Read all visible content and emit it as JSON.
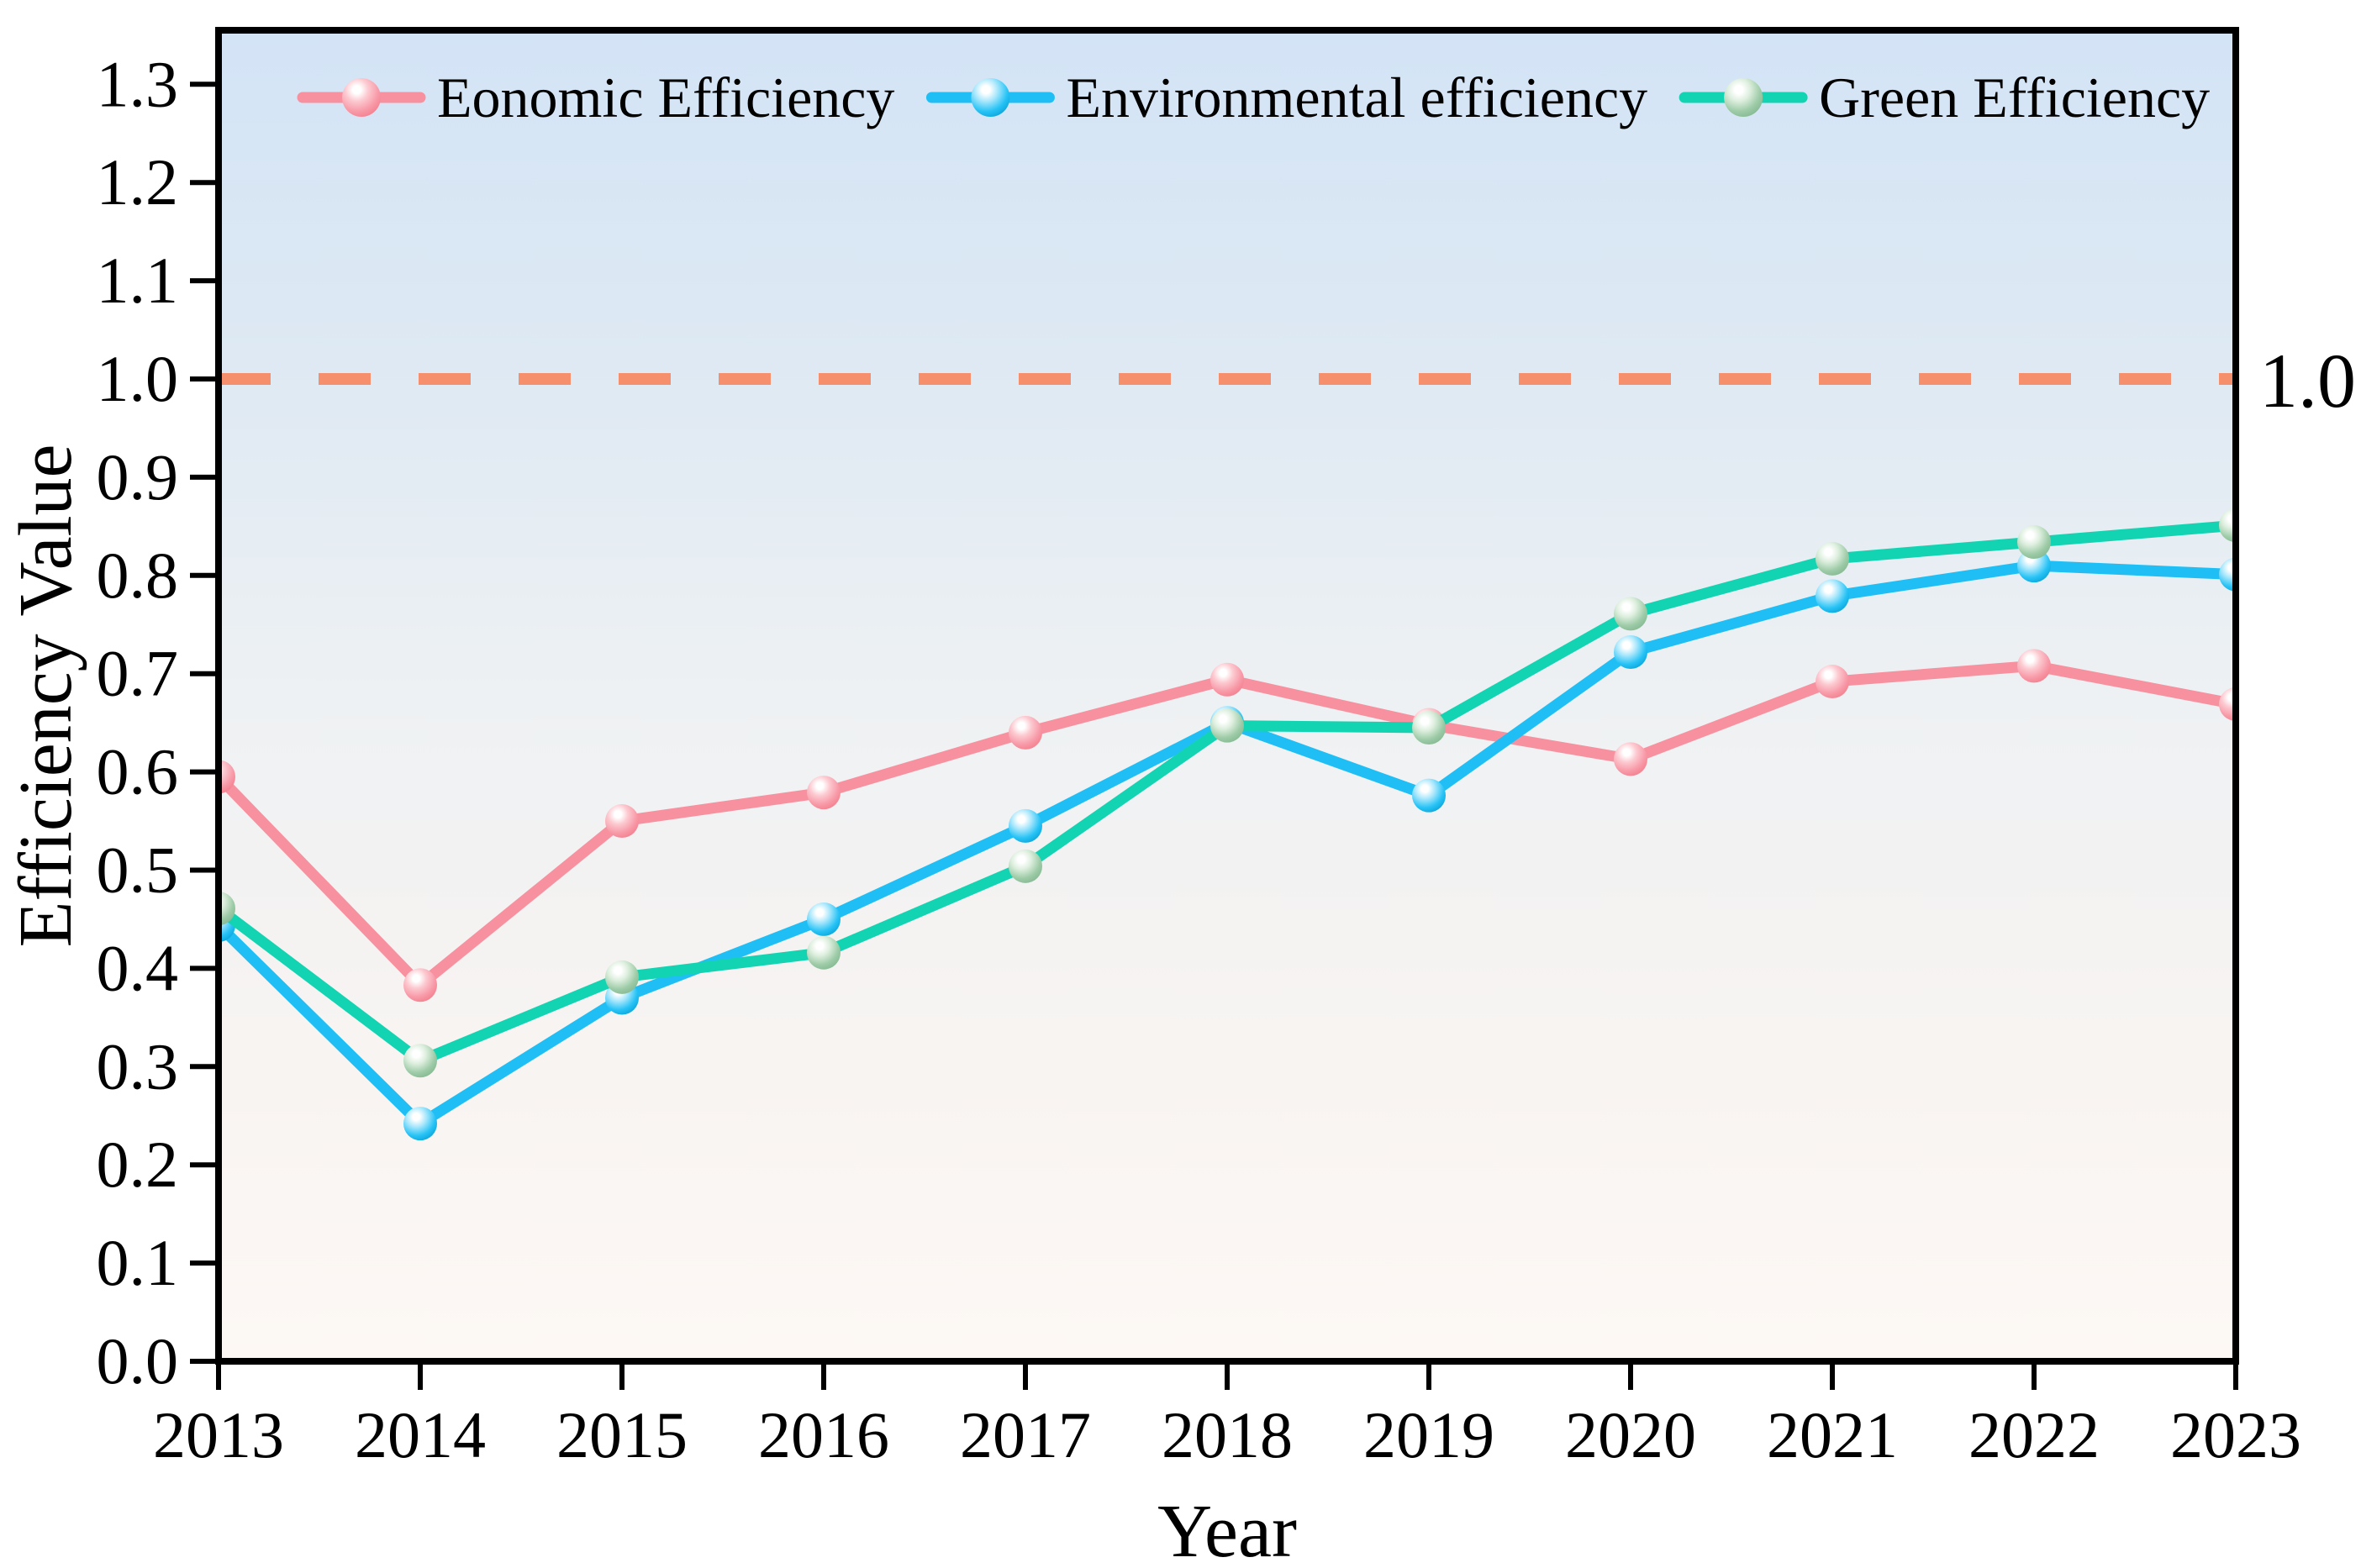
{
  "figure": {
    "type": "line-chart-figure",
    "background_color": "#ffffff",
    "axes_color": "#000000"
  },
  "chart_data": {
    "type": "line",
    "title": "",
    "xlabel": "Year",
    "ylabel": "Efficiency Value",
    "x": [
      2013,
      2014,
      2015,
      2016,
      2017,
      2018,
      2019,
      2020,
      2021,
      2022,
      2023
    ],
    "series": [
      {
        "name": "Eonomic Efficiency",
        "line_color": "#F8919F",
        "marker_colors": {
          "light": "#FCC9D0",
          "base": "#F899A7",
          "dark": "#F4808F"
        },
        "values": [
          0.595,
          0.383,
          0.55,
          0.579,
          0.64,
          0.694,
          0.648,
          0.613,
          0.692,
          0.708,
          0.669
        ]
      },
      {
        "name": "Environmental efficiency",
        "line_color": "#1FBFF5",
        "marker_colors": {
          "light": "#A9E7FC",
          "base": "#27C3F6",
          "dark": "#0CA6DC"
        },
        "values": [
          0.444,
          0.242,
          0.37,
          0.45,
          0.545,
          0.65,
          0.576,
          0.722,
          0.779,
          0.81,
          0.801
        ]
      },
      {
        "name": "Green Efficiency",
        "line_color": "#13D4B2",
        "marker_colors": {
          "light": "#DCEEDD",
          "base": "#9DCBA7",
          "dark": "#86BA93"
        },
        "values": [
          0.461,
          0.306,
          0.391,
          0.416,
          0.504,
          0.647,
          0.645,
          0.761,
          0.817,
          0.834,
          0.851
        ]
      }
    ],
    "xlim": [
      2013,
      2023
    ],
    "ylim": [
      0.0,
      1.355
    ],
    "yticks": [
      0.0,
      0.1,
      0.2,
      0.3,
      0.4,
      0.5,
      0.6,
      0.7,
      0.8,
      0.9,
      1.0,
      1.1,
      1.2,
      1.3
    ],
    "xticks": [
      2013,
      2014,
      2015,
      2016,
      2017,
      2018,
      2019,
      2020,
      2021,
      2022,
      2023
    ],
    "grid": false,
    "legend_position": "inside-top-left",
    "reference_line": {
      "value": 1.0,
      "label": "1.0",
      "color": "#F6906C",
      "style": "dashed"
    },
    "background_gradient": {
      "direction": "top-to-bottom",
      "stops": [
        "#D3E4F6",
        "#DEE9F3",
        "#EEF1F3",
        "#F8F4F2",
        "#FDF8F4"
      ],
      "offsets": [
        0,
        25,
        50,
        78,
        100
      ]
    }
  }
}
